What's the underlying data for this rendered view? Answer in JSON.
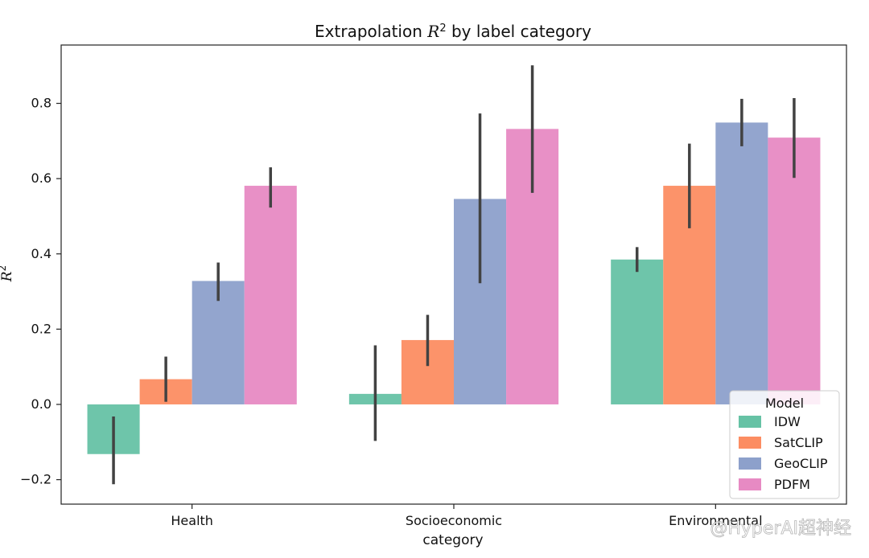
{
  "chart_data": {
    "type": "bar",
    "title": "Extrapolation R² by label category",
    "title_parts": {
      "prefix": "Extrapolation ",
      "math_var": "R",
      "superscript": "2",
      "suffix": " by label category"
    },
    "xlabel": "category",
    "ylabel": "R²",
    "ylabel_parts": {
      "math_var": "R",
      "superscript": "2"
    },
    "categories": [
      "Health",
      "Socioeconomic",
      "Environmental"
    ],
    "ylim": [
      -0.265,
      0.955
    ],
    "yticks": [
      -0.2,
      0.0,
      0.2,
      0.4,
      0.6,
      0.8
    ],
    "ytick_labels": [
      "−0.2",
      "0.0",
      "0.2",
      "0.4",
      "0.6",
      "0.8"
    ],
    "grid": false,
    "legend": {
      "title": "Model",
      "position": "lower-right"
    },
    "series": [
      {
        "name": "IDW",
        "color": "#66c2a5",
        "values": [
          -0.132,
          0.028,
          0.385
        ],
        "error_low": [
          -0.212,
          -0.097,
          0.352
        ],
        "error_high": [
          -0.032,
          0.157,
          0.418
        ]
      },
      {
        "name": "SatCLIP",
        "color": "#fc8d62",
        "values": [
          0.067,
          0.171,
          0.581
        ],
        "error_low": [
          0.007,
          0.102,
          0.468
        ],
        "error_high": [
          0.127,
          0.238,
          0.693
        ]
      },
      {
        "name": "GeoCLIP",
        "color": "#8da0cb",
        "values": [
          0.328,
          0.546,
          0.749
        ],
        "error_low": [
          0.275,
          0.322,
          0.686
        ],
        "error_high": [
          0.377,
          0.773,
          0.812
        ]
      },
      {
        "name": "PDFM",
        "color": "#e78ac3",
        "values": [
          0.581,
          0.732,
          0.709
        ],
        "error_low": [
          0.523,
          0.562,
          0.602
        ],
        "error_high": [
          0.63,
          0.901,
          0.814
        ]
      }
    ]
  },
  "watermark": {
    "text": "@HyperAI超神经"
  }
}
